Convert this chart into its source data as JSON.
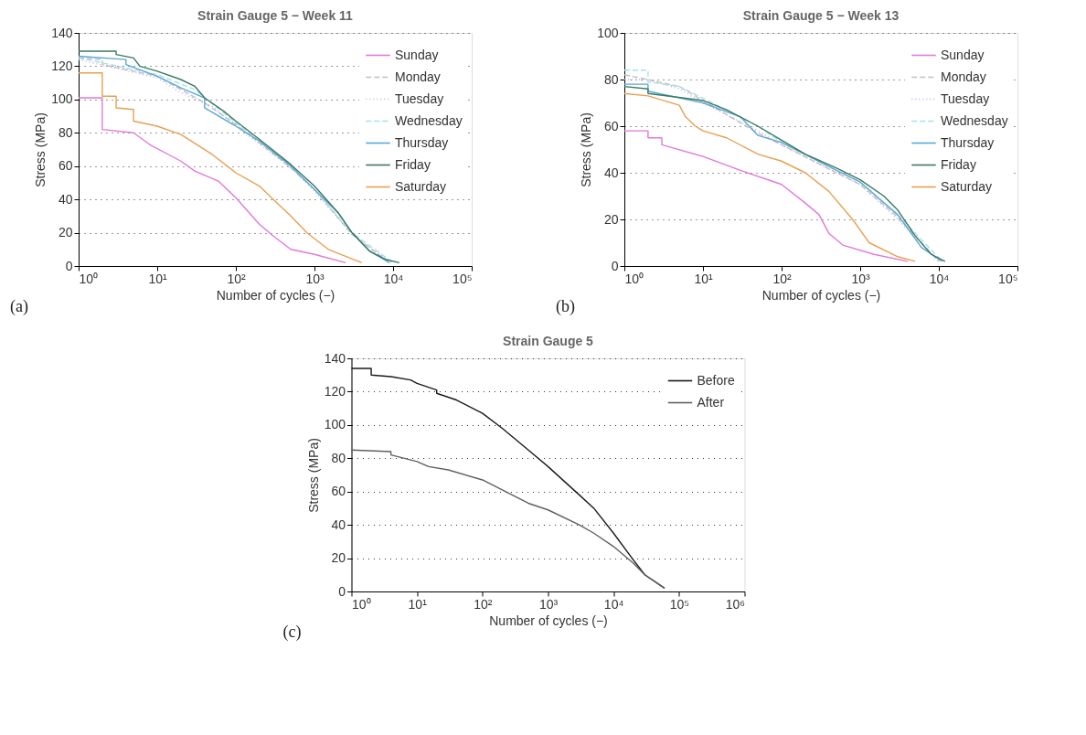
{
  "chart_data": [
    {
      "type": "line",
      "title": "Strain Gauge 5 − Week 11",
      "xlabel": "Number of cycles (−)",
      "ylabel": "Stress (MPa)",
      "log": "x",
      "grid": "y",
      "legend": "top right",
      "annotations": [
        "(a)"
      ],
      "xlim": [
        1,
        100000
      ],
      "xticks": [
        {
          "value": 1,
          "label": "10⁰"
        },
        {
          "value": 10,
          "label": "10¹"
        },
        {
          "value": 100,
          "label": "10²"
        },
        {
          "value": 1000,
          "label": "10³"
        },
        {
          "value": 10000,
          "label": "10⁴"
        },
        {
          "value": 100000,
          "label": "10⁵"
        }
      ],
      "ylim": [
        0,
        140
      ],
      "yticks": [
        0,
        20,
        40,
        60,
        80,
        100,
        120,
        140
      ],
      "series": [
        {
          "name": "Sunday",
          "color": "#e07ad8",
          "x": [
            1,
            2,
            2,
            5,
            8,
            20,
            30,
            60,
            100,
            200,
            300,
            500,
            1000,
            2500
          ],
          "values": [
            101,
            101,
            82,
            80,
            73,
            63,
            57,
            51,
            41,
            25,
            18,
            10,
            7,
            2
          ]
        },
        {
          "name": "Monday",
          "color": "#c0c0c0",
          "line_style": "dashed",
          "x": [
            1,
            2,
            2,
            10,
            20,
            40,
            100,
            200,
            500,
            1000,
            3000,
            9000
          ],
          "values": [
            125,
            124,
            121,
            114,
            106,
            98,
            85,
            74,
            59,
            46,
            19,
            2
          ]
        },
        {
          "name": "Tuesday",
          "color": "#c8a8d8",
          "line_style": "dotted",
          "x": [
            1,
            10,
            20,
            50,
            100,
            500,
            1000,
            3000,
            9500
          ],
          "values": [
            124,
            113,
            104,
            96,
            84,
            59,
            45,
            19,
            2
          ]
        },
        {
          "name": "Wednesday",
          "color": "#a8e0e8",
          "line_style": "dashed",
          "x": [
            1,
            10,
            30,
            100,
            500,
            1000,
            3000,
            10000
          ],
          "values": [
            125,
            115,
            106,
            86,
            60,
            46,
            20,
            2
          ]
        },
        {
          "name": "Thursday",
          "color": "#5aa8d8",
          "x": [
            1,
            4,
            4,
            10,
            20,
            40,
            40,
            100,
            200,
            500,
            1000,
            2000,
            3000,
            5000,
            9000
          ],
          "values": [
            126,
            124,
            121,
            114,
            107,
            101,
            95,
            84,
            75,
            60,
            46,
            32,
            20,
            9,
            2
          ]
        },
        {
          "name": "Friday",
          "color": "#3a7a60",
          "x": [
            1,
            3,
            3,
            5,
            6,
            10,
            20,
            30,
            40,
            70,
            100,
            200,
            500,
            1000,
            2000,
            3000,
            5000,
            8000,
            12000
          ],
          "values": [
            129,
            129,
            127,
            125,
            120,
            117,
            112,
            108,
            101,
            93,
            87,
            76,
            61,
            48,
            32,
            20,
            9,
            4,
            2
          ]
        },
        {
          "name": "Saturday",
          "color": "#e8a050",
          "x": [
            1,
            2,
            2,
            3,
            3,
            5,
            5,
            10,
            20,
            50,
            100,
            200,
            300,
            500,
            800,
            1500,
            4000
          ],
          "values": [
            116,
            116,
            102,
            102,
            95,
            94,
            87,
            84,
            79,
            67,
            56,
            48,
            40,
            30,
            20,
            10,
            2
          ]
        }
      ]
    },
    {
      "type": "line",
      "title": "Strain Gauge 5 − Week 13",
      "xlabel": "Number of cycles (−)",
      "ylabel": "Stress (MPa)",
      "log": "x",
      "grid": "y",
      "legend": "top right",
      "annotations": [
        "(b)"
      ],
      "xlim": [
        1,
        100000
      ],
      "xticks": [
        {
          "value": 1,
          "label": "10⁰"
        },
        {
          "value": 10,
          "label": "10¹"
        },
        {
          "value": 100,
          "label": "10²"
        },
        {
          "value": 1000,
          "label": "10³"
        },
        {
          "value": 10000,
          "label": "10⁴"
        },
        {
          "value": 100000,
          "label": "10⁵"
        }
      ],
      "ylim": [
        0,
        100
      ],
      "yticks": [
        0,
        20,
        40,
        60,
        80,
        100
      ],
      "series": [
        {
          "name": "Sunday",
          "color": "#e07ad8",
          "x": [
            1,
            2,
            2,
            3,
            3,
            10,
            30,
            100,
            200,
            300,
            400,
            600,
            1500,
            4000
          ],
          "values": [
            58,
            58,
            55,
            55,
            52,
            47,
            41,
            35,
            27,
            22,
            14,
            9,
            5,
            2
          ]
        },
        {
          "name": "Monday",
          "color": "#c0c0c0",
          "line_style": "dashed",
          "x": [
            1,
            2,
            5,
            10,
            50,
            100,
            500,
            1000,
            3000,
            10000
          ],
          "values": [
            82,
            80,
            77,
            71,
            57,
            52,
            40,
            35,
            21,
            2
          ]
        },
        {
          "name": "Tuesday",
          "color": "#c8a8d8",
          "line_style": "dotted",
          "x": [
            1,
            2,
            5,
            10,
            50,
            100,
            500,
            1000,
            3000,
            10000
          ],
          "values": [
            80,
            80,
            76,
            70,
            58,
            52,
            40,
            35,
            20,
            2
          ]
        },
        {
          "name": "Wednesday",
          "color": "#a8e0e8",
          "line_style": "dashed",
          "x": [
            1,
            2,
            2,
            5,
            10,
            50,
            100,
            500,
            1000,
            3000,
            11000
          ],
          "values": [
            84,
            84,
            79,
            77,
            72,
            60,
            53,
            41,
            36,
            22,
            2
          ]
        },
        {
          "name": "Thursday",
          "color": "#5aa8d8",
          "x": [
            1,
            2,
            2,
            10,
            30,
            50,
            100,
            500,
            1000,
            3000,
            6000,
            11000
          ],
          "values": [
            78,
            78,
            75,
            70,
            64,
            56,
            53,
            41,
            36,
            22,
            8,
            2
          ]
        },
        {
          "name": "Friday",
          "color": "#3a7a60",
          "x": [
            1,
            2,
            2,
            10,
            20,
            50,
            100,
            200,
            500,
            1000,
            2000,
            3000,
            5000,
            8000,
            12000
          ],
          "values": [
            77,
            76,
            74,
            71,
            67,
            60,
            54,
            48,
            42,
            37,
            30,
            24,
            13,
            5,
            2
          ]
        },
        {
          "name": "Saturday",
          "color": "#e8a050",
          "x": [
            1,
            2,
            5,
            6,
            8,
            10,
            20,
            50,
            100,
            200,
            400,
            800,
            1300,
            3000,
            5000
          ],
          "values": [
            74,
            73,
            69,
            64,
            60,
            58,
            55,
            48,
            45,
            40,
            32,
            20,
            10,
            4,
            2
          ]
        }
      ]
    },
    {
      "type": "line",
      "title": "Strain Gauge 5",
      "xlabel": "Number of cycles (−)",
      "ylabel": "Stress (MPa)",
      "log": "x",
      "grid": "y",
      "legend": "top right",
      "annotations": [
        "(c)"
      ],
      "xlim": [
        1,
        1000000
      ],
      "xticks": [
        {
          "value": 1,
          "label": "10⁰"
        },
        {
          "value": 10,
          "label": "10¹"
        },
        {
          "value": 100,
          "label": "10²"
        },
        {
          "value": 1000,
          "label": "10³"
        },
        {
          "value": 10000,
          "label": "10⁴"
        },
        {
          "value": 100000,
          "label": "10⁵"
        },
        {
          "value": 1000000,
          "label": "10⁶"
        }
      ],
      "ylim": [
        0,
        140
      ],
      "yticks": [
        0,
        20,
        40,
        60,
        80,
        100,
        120,
        140
      ],
      "series": [
        {
          "name": "Before",
          "color": "#1a1a1a",
          "x": [
            1,
            2,
            2,
            4,
            8,
            10,
            20,
            20,
            40,
            100,
            200,
            500,
            1000,
            3000,
            5000,
            10000,
            20000,
            30000,
            60000
          ],
          "values": [
            134,
            134,
            130,
            129,
            127,
            125,
            121,
            119,
            115,
            107,
            98,
            85,
            75,
            58,
            50,
            35,
            19,
            10,
            2
          ]
        },
        {
          "name": "After",
          "color": "#606060",
          "x": [
            1,
            4,
            4,
            10,
            15,
            30,
            100,
            200,
            500,
            1000,
            3000,
            5000,
            10000,
            20000,
            30000,
            60000
          ],
          "values": [
            85,
            84,
            82,
            78,
            75,
            73,
            67,
            61,
            53,
            49,
            40,
            35,
            27,
            17,
            10,
            2
          ]
        }
      ]
    }
  ]
}
